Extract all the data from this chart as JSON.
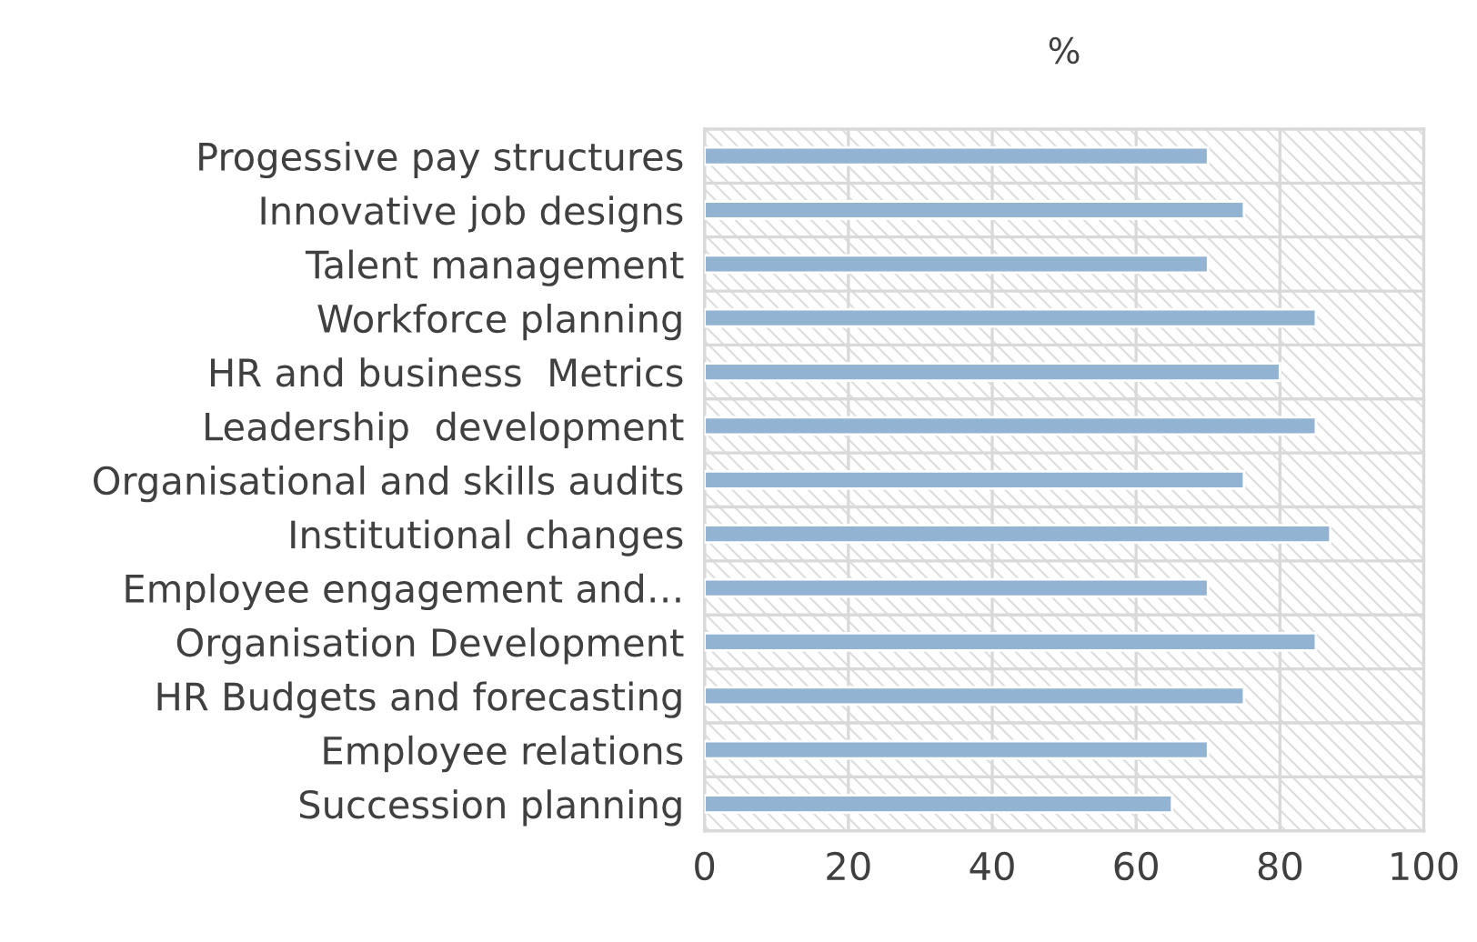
{
  "chart_data": {
    "type": "bar",
    "orientation": "horizontal",
    "title": "%",
    "categories": [
      "Progessive pay structures",
      "Innovative job designs",
      "Talent management",
      "Workforce planning",
      "HR and business  Metrics",
      "Leadership  development",
      "Organisational and skills audits",
      "Institutional changes",
      "Employee engagement and…",
      "Organisation Development",
      "HR Budgets and forecasting",
      "Employee relations",
      "Succession planning"
    ],
    "values": [
      70,
      75,
      70,
      85,
      80,
      85,
      75,
      87,
      70,
      85,
      75,
      70,
      65
    ],
    "color": "#93b3d3",
    "xlim": [
      0,
      100
    ],
    "xticks": [
      0,
      20,
      40,
      60,
      80,
      100
    ],
    "grid": true
  }
}
